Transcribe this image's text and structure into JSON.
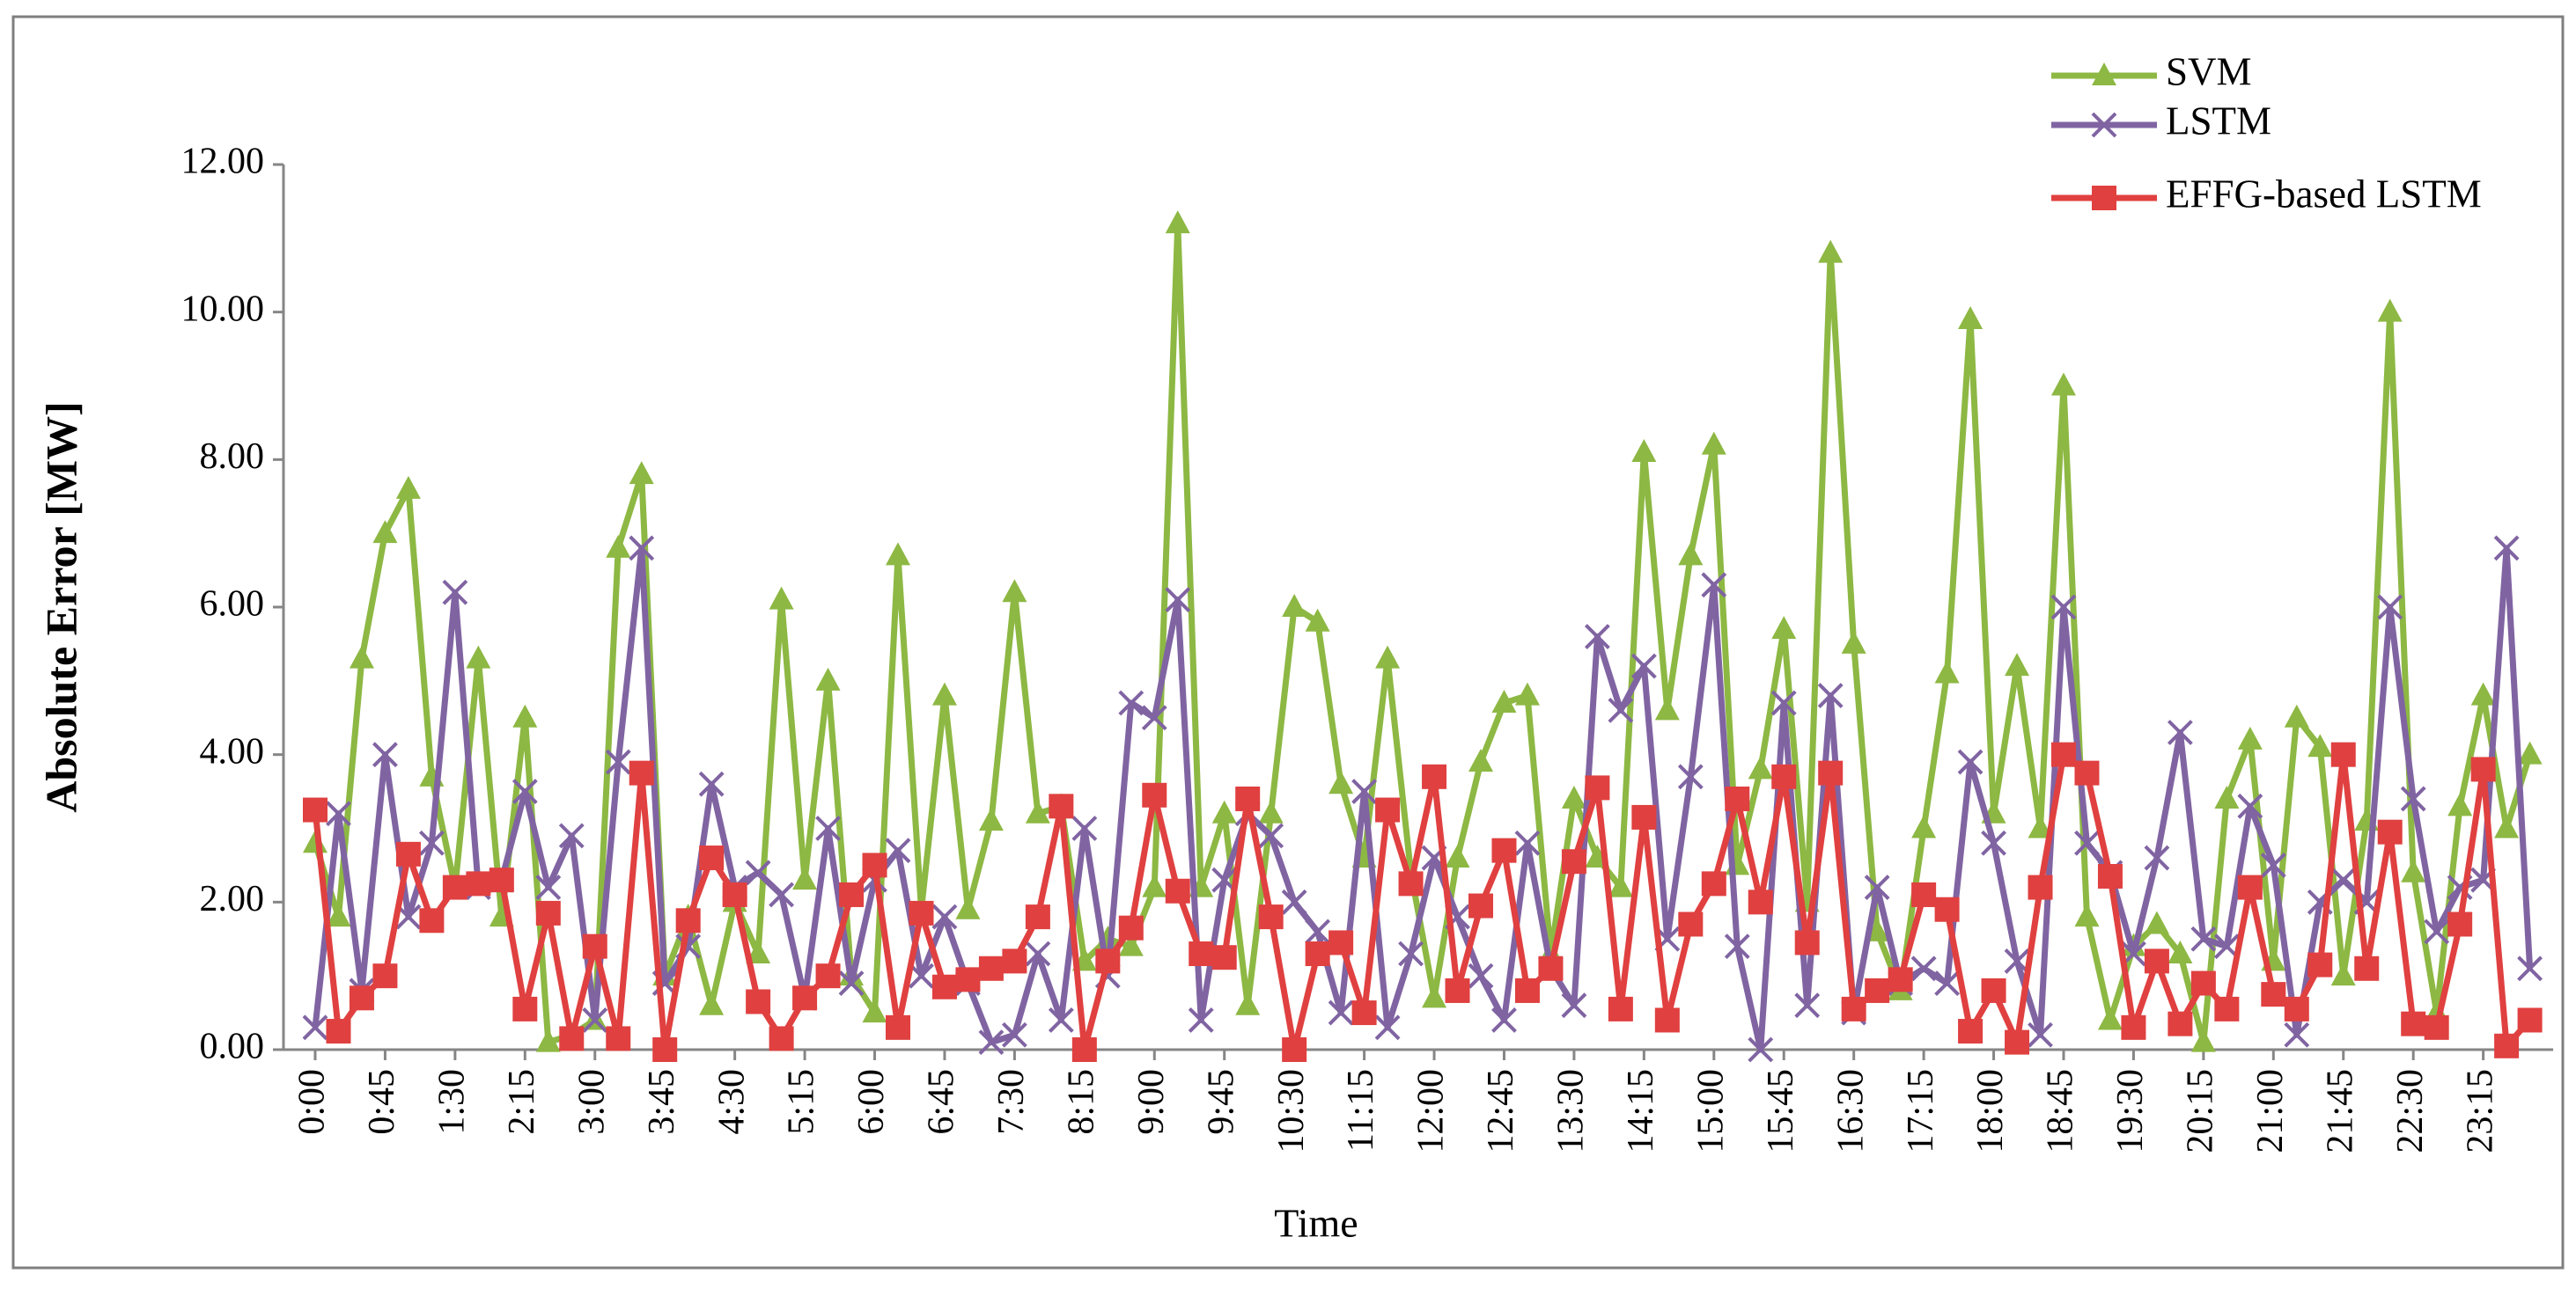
{
  "chart_data": {
    "type": "line",
    "xlabel": "Time",
    "ylabel": "Absolute Error [MW]",
    "categories": [
      "0:00",
      null,
      null,
      "0:45",
      null,
      null,
      "1:30",
      null,
      null,
      "2:15",
      null,
      null,
      "3:00",
      null,
      null,
      "3:45",
      null,
      null,
      "4:30",
      null,
      null,
      "5:15",
      null,
      null,
      "6:00",
      null,
      null,
      "6:45",
      null,
      null,
      "7:30",
      null,
      null,
      "8:15",
      null,
      null,
      "9:00",
      null,
      null,
      "9:45",
      null,
      null,
      "10:30",
      null,
      null,
      "11:15",
      null,
      null,
      "12:00",
      null,
      null,
      "12:45",
      null,
      null,
      "13:30",
      null,
      null,
      "14:15",
      null,
      null,
      "15:00",
      null,
      null,
      "15:45",
      null,
      null,
      "16:30",
      null,
      null,
      "17:15",
      null,
      null,
      "18:00",
      null,
      null,
      "18:45",
      null,
      null,
      "19:30",
      null,
      null,
      "20:15",
      null,
      null,
      "21:00",
      null,
      null,
      "21:45",
      null,
      null,
      "22:30",
      null,
      null,
      "23:15",
      null,
      null
    ],
    "series": [
      {
        "name": "SVM",
        "color": "#8db843",
        "marker": "triangle",
        "values": [
          2.8,
          1.8,
          5.3,
          7.0,
          7.6,
          3.7,
          2.2,
          5.3,
          1.8,
          4.5,
          0.1,
          0.2,
          0.4,
          6.8,
          7.8,
          1.0,
          1.8,
          0.6,
          2.0,
          1.3,
          6.1,
          2.3,
          5.0,
          1.0,
          0.5,
          6.7,
          1.9,
          4.8,
          1.9,
          3.1,
          6.2,
          3.2,
          3.3,
          1.2,
          1.5,
          1.4,
          2.2,
          11.2,
          2.2,
          3.2,
          0.6,
          3.2,
          6.0,
          5.8,
          3.6,
          2.6,
          5.3,
          2.4,
          0.7,
          2.6,
          3.9,
          4.7,
          4.8,
          1.3,
          3.4,
          2.6,
          2.2,
          8.1,
          4.6,
          6.7,
          8.2,
          2.5,
          3.8,
          5.7,
          2.0,
          10.8,
          5.5,
          1.6,
          0.8,
          3.0,
          5.1,
          9.9,
          3.2,
          5.2,
          3.0,
          9.0,
          1.8,
          0.4,
          1.4,
          1.7,
          1.3,
          0.1,
          3.4,
          4.2,
          1.2,
          4.5,
          4.1,
          1.0,
          3.1,
          10.0,
          2.4,
          0.5,
          3.3,
          4.8,
          3.0,
          4.0
        ]
      },
      {
        "name": "LSTM",
        "color": "#8064a2",
        "marker": "cross",
        "values": [
          0.3,
          3.2,
          0.8,
          4.0,
          1.8,
          2.8,
          6.2,
          2.2,
          2.3,
          3.5,
          2.2,
          2.9,
          0.4,
          3.9,
          6.8,
          0.9,
          1.4,
          3.6,
          2.2,
          2.4,
          2.1,
          0.7,
          3.0,
          0.9,
          2.3,
          2.7,
          1.0,
          1.8,
          0.9,
          0.1,
          0.2,
          1.3,
          0.4,
          3.0,
          1.0,
          4.7,
          4.5,
          6.1,
          0.4,
          2.3,
          3.2,
          2.9,
          2.0,
          1.6,
          0.5,
          3.5,
          0.3,
          1.3,
          2.6,
          1.8,
          1.0,
          0.4,
          2.8,
          1.1,
          0.6,
          5.6,
          4.6,
          5.2,
          1.5,
          3.7,
          6.3,
          1.4,
          0.0,
          4.7,
          0.6,
          4.8,
          0.5,
          2.2,
          0.9,
          1.1,
          0.9,
          3.9,
          2.8,
          1.2,
          0.2,
          6.0,
          2.8,
          2.4,
          1.3,
          2.6,
          4.3,
          1.5,
          1.4,
          3.3,
          2.5,
          0.2,
          2.0,
          2.3,
          2.0,
          6.0,
          3.4,
          1.6,
          2.2,
          2.3,
          6.8,
          1.1
        ]
      },
      {
        "name": "EFFG-based LSTM",
        "color": "#e04040",
        "marker": "square",
        "values": [
          3.25,
          0.25,
          0.7,
          1.0,
          2.65,
          1.75,
          2.2,
          2.25,
          2.3,
          0.55,
          1.85,
          0.15,
          1.4,
          0.15,
          3.75,
          0.0,
          1.75,
          2.6,
          2.1,
          0.65,
          0.15,
          0.7,
          1.0,
          2.1,
          2.5,
          0.3,
          1.85,
          0.85,
          0.95,
          1.1,
          1.2,
          1.8,
          3.3,
          0.0,
          1.2,
          1.65,
          3.45,
          2.15,
          1.3,
          1.25,
          3.4,
          1.8,
          0.0,
          1.3,
          1.45,
          0.5,
          3.25,
          2.25,
          3.7,
          0.8,
          1.95,
          2.7,
          0.8,
          1.1,
          2.55,
          3.55,
          0.55,
          3.15,
          0.4,
          1.7,
          2.25,
          3.4,
          2.0,
          3.7,
          1.45,
          3.75,
          0.55,
          0.8,
          0.95,
          2.1,
          1.9,
          0.25,
          0.8,
          0.1,
          2.2,
          4.0,
          3.75,
          2.35,
          0.3,
          1.2,
          0.35,
          0.9,
          0.55,
          2.2,
          0.75,
          0.55,
          1.15,
          4.0,
          1.1,
          2.95,
          0.35,
          0.3,
          1.7,
          3.8,
          0.05,
          0.4
        ]
      }
    ],
    "ylim": [
      0,
      12
    ],
    "yticks": [
      {
        "value": 0,
        "label": "0.00"
      },
      {
        "value": 2,
        "label": "2.00"
      },
      {
        "value": 4,
        "label": "4.00"
      },
      {
        "value": 6,
        "label": "6.00"
      },
      {
        "value": 8,
        "label": "8.00"
      },
      {
        "value": 10,
        "label": "10.00"
      },
      {
        "value": 12,
        "label": "12.00"
      }
    ],
    "grid": false,
    "legend": "top-right"
  }
}
